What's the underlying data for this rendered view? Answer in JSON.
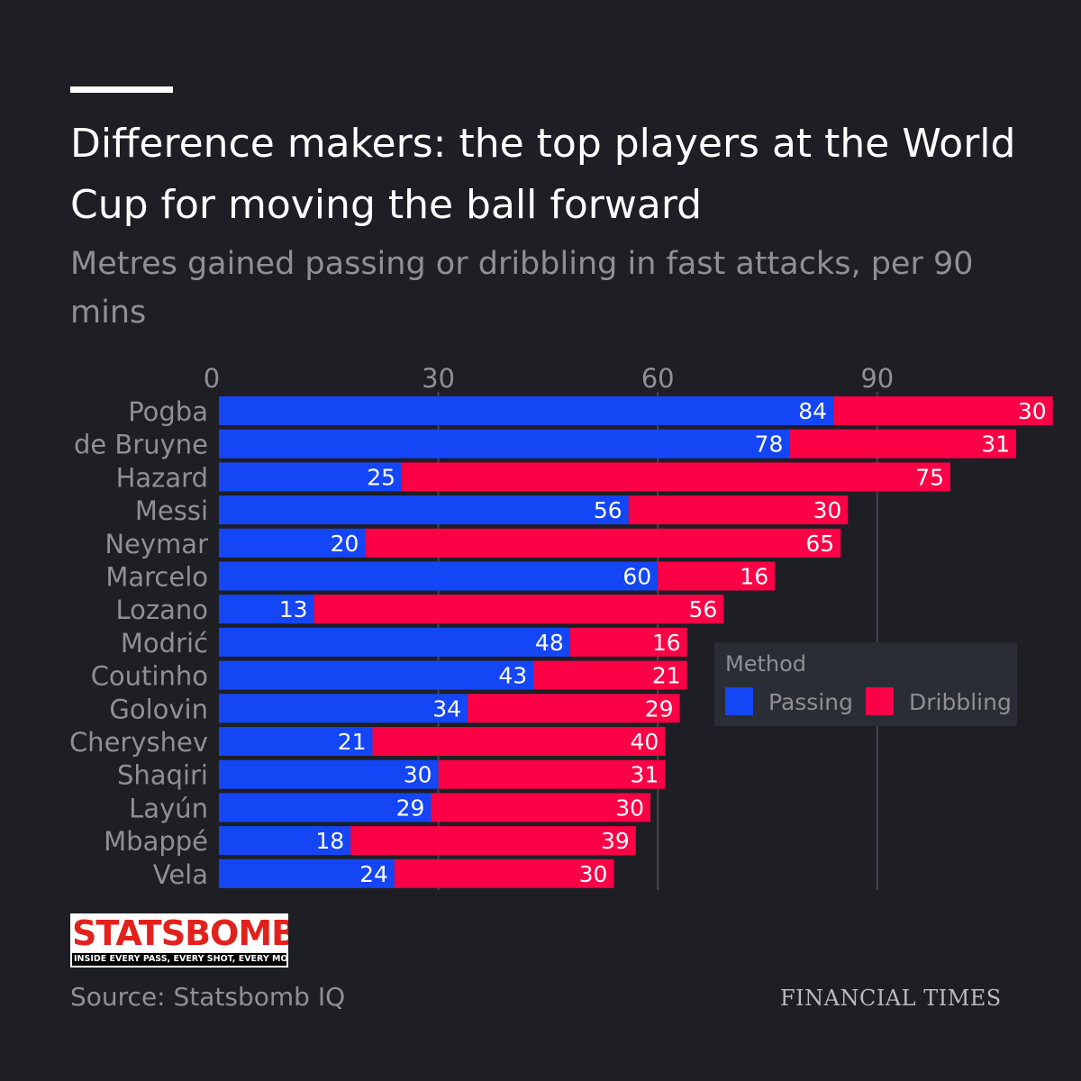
{
  "title": "Difference makers: the top players at the World Cup for moving the ball forward",
  "subtitle": "Metres gained passing or dribbling in fast attacks, per 90 mins",
  "source": "Source: Statsbomb IQ",
  "publisher": "FINANCIAL TIMES",
  "logo": {
    "name": "STATSBOMB",
    "tagline": "INSIDE EVERY PASS, EVERY SHOT, EVERY MOVE"
  },
  "legend": {
    "title": "Method",
    "position": "right, inside plot area"
  },
  "colors": {
    "passing": "#1446f5",
    "dribbling": "#fb0146",
    "background": "#1e1f25",
    "legend_bg": "#2b2d36"
  },
  "chart_data": {
    "type": "bar",
    "orientation": "horizontal",
    "stacked": true,
    "categories": [
      "Pogba",
      "de Bruyne",
      "Hazard",
      "Messi",
      "Neymar",
      "Marcelo",
      "Lozano",
      "Modrić",
      "Coutinho",
      "Golovin",
      "Cheryshev",
      "Shaqiri",
      "Layún",
      "Mbappé",
      "Vela"
    ],
    "series": [
      {
        "name": "Passing",
        "values": [
          84,
          78,
          25,
          56,
          20,
          60,
          13,
          48,
          43,
          34,
          21,
          30,
          29,
          18,
          24
        ]
      },
      {
        "name": "Dribbling",
        "values": [
          30,
          31,
          75,
          30,
          65,
          16,
          56,
          16,
          21,
          29,
          40,
          31,
          30,
          39,
          30
        ]
      }
    ],
    "xlim": [
      0,
      120
    ],
    "xticks": [
      0,
      30,
      60,
      90
    ],
    "grid": true,
    "data_labels": true
  }
}
